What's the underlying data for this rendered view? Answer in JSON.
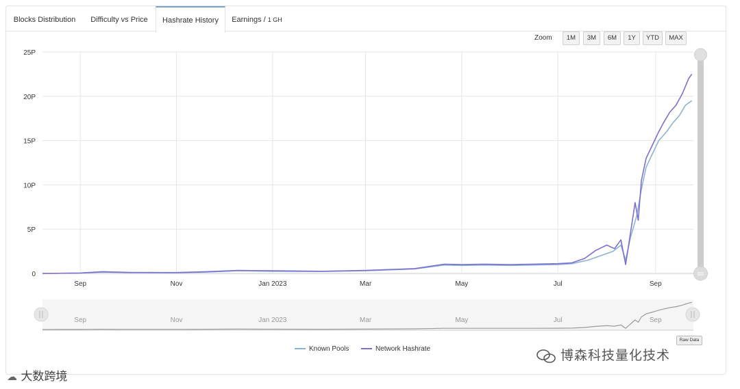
{
  "tabs": [
    {
      "label": "Blocks Distribution",
      "suffix": ""
    },
    {
      "label": "Difficulty vs Price",
      "suffix": ""
    },
    {
      "label": "Hashrate History",
      "suffix": ""
    },
    {
      "label": "Earnings / ",
      "suffix": "1 GH"
    }
  ],
  "active_tab_index": 2,
  "zoom": {
    "label": "Zoom",
    "buttons": [
      "1M",
      "3M",
      "6M",
      "1Y",
      "YTD",
      "MAX"
    ]
  },
  "raw_data_label": "Raw Data",
  "watermarks": {
    "right": "博森科技量化技术",
    "left": "大数跨境"
  },
  "colors": {
    "known_pools": "#8ab4d6",
    "network_hashrate": "#7b6fd0",
    "active_tab_border": "#7aa0cc"
  },
  "chart_data": {
    "type": "line",
    "x_axis": {
      "type": "datetime",
      "range": [
        "2022-08-08",
        "2023-09-25"
      ],
      "tick_labels": [
        {
          "label": "Sep",
          "date": "2022-09-01"
        },
        {
          "label": "Nov",
          "date": "2022-11-01"
        },
        {
          "label": "Jan 2023",
          "date": "2023-01-01"
        },
        {
          "label": "Mar",
          "date": "2023-03-01"
        },
        {
          "label": "May",
          "date": "2023-05-01"
        },
        {
          "label": "Jul",
          "date": "2023-07-01"
        },
        {
          "label": "Sep",
          "date": "2023-09-01"
        }
      ]
    },
    "y_axis": {
      "range": [
        0,
        25
      ],
      "unit": "P",
      "tick_labels": [
        {
          "label": "0",
          "value": 0
        },
        {
          "label": "5P",
          "value": 5
        },
        {
          "label": "10P",
          "value": 10
        },
        {
          "label": "15P",
          "value": 15
        },
        {
          "label": "20P",
          "value": 20
        },
        {
          "label": "25P",
          "value": 25
        }
      ]
    },
    "grid": true,
    "legend_position": "bottom-center",
    "series": [
      {
        "name": "Known Pools",
        "color": "#8ab4d6",
        "points": [
          [
            "2022-08-08",
            0.0
          ],
          [
            "2022-09-01",
            0.05
          ],
          [
            "2022-09-15",
            0.15
          ],
          [
            "2022-10-01",
            0.1
          ],
          [
            "2022-11-01",
            0.08
          ],
          [
            "2022-11-20",
            0.15
          ],
          [
            "2022-12-10",
            0.3
          ],
          [
            "2023-01-01",
            0.25
          ],
          [
            "2023-02-01",
            0.22
          ],
          [
            "2023-03-01",
            0.3
          ],
          [
            "2023-04-01",
            0.5
          ],
          [
            "2023-04-20",
            0.95
          ],
          [
            "2023-05-01",
            0.9
          ],
          [
            "2023-05-15",
            0.95
          ],
          [
            "2023-06-01",
            0.9
          ],
          [
            "2023-06-15",
            0.95
          ],
          [
            "2023-07-01",
            1.0
          ],
          [
            "2023-07-10",
            1.1
          ],
          [
            "2023-07-20",
            1.5
          ],
          [
            "2023-07-28",
            2.0
          ],
          [
            "2023-08-05",
            2.5
          ],
          [
            "2023-08-10",
            3.2
          ],
          [
            "2023-08-13",
            1.5
          ],
          [
            "2023-08-16",
            4.0
          ],
          [
            "2023-08-20",
            6.5
          ],
          [
            "2023-08-23",
            9.5
          ],
          [
            "2023-08-26",
            12.0
          ],
          [
            "2023-08-30",
            13.5
          ],
          [
            "2023-09-03",
            15.0
          ],
          [
            "2023-09-08",
            16.0
          ],
          [
            "2023-09-12",
            17.0
          ],
          [
            "2023-09-16",
            17.8
          ],
          [
            "2023-09-20",
            19.0
          ],
          [
            "2023-09-24",
            19.5
          ]
        ]
      },
      {
        "name": "Network Hashrate",
        "color": "#7b6fd0",
        "points": [
          [
            "2022-08-08",
            0.0
          ],
          [
            "2022-09-01",
            0.05
          ],
          [
            "2022-09-15",
            0.2
          ],
          [
            "2022-10-01",
            0.12
          ],
          [
            "2022-11-01",
            0.1
          ],
          [
            "2022-11-20",
            0.2
          ],
          [
            "2022-12-10",
            0.35
          ],
          [
            "2023-01-01",
            0.3
          ],
          [
            "2023-02-01",
            0.25
          ],
          [
            "2023-03-01",
            0.35
          ],
          [
            "2023-04-01",
            0.55
          ],
          [
            "2023-04-20",
            1.05
          ],
          [
            "2023-05-01",
            1.0
          ],
          [
            "2023-05-15",
            1.05
          ],
          [
            "2023-06-01",
            1.0
          ],
          [
            "2023-06-15",
            1.05
          ],
          [
            "2023-07-01",
            1.1
          ],
          [
            "2023-07-10",
            1.2
          ],
          [
            "2023-07-18",
            1.7
          ],
          [
            "2023-07-25",
            2.6
          ],
          [
            "2023-08-01",
            3.2
          ],
          [
            "2023-08-06",
            2.8
          ],
          [
            "2023-08-10",
            3.8
          ],
          [
            "2023-08-13",
            1.0
          ],
          [
            "2023-08-16",
            4.5
          ],
          [
            "2023-08-19",
            8.0
          ],
          [
            "2023-08-21",
            6.0
          ],
          [
            "2023-08-23",
            10.5
          ],
          [
            "2023-08-26",
            13.0
          ],
          [
            "2023-08-30",
            14.5
          ],
          [
            "2023-09-03",
            16.0
          ],
          [
            "2023-09-06",
            17.0
          ],
          [
            "2023-09-10",
            18.2
          ],
          [
            "2023-09-14",
            19.0
          ],
          [
            "2023-09-18",
            20.3
          ],
          [
            "2023-09-22",
            22.0
          ],
          [
            "2023-09-24",
            22.5
          ]
        ]
      }
    ],
    "navigator": {
      "tick_labels": [
        "Sep",
        "Nov",
        "Jan 2023",
        "Mar",
        "May",
        "Jul",
        "Sep"
      ]
    }
  }
}
